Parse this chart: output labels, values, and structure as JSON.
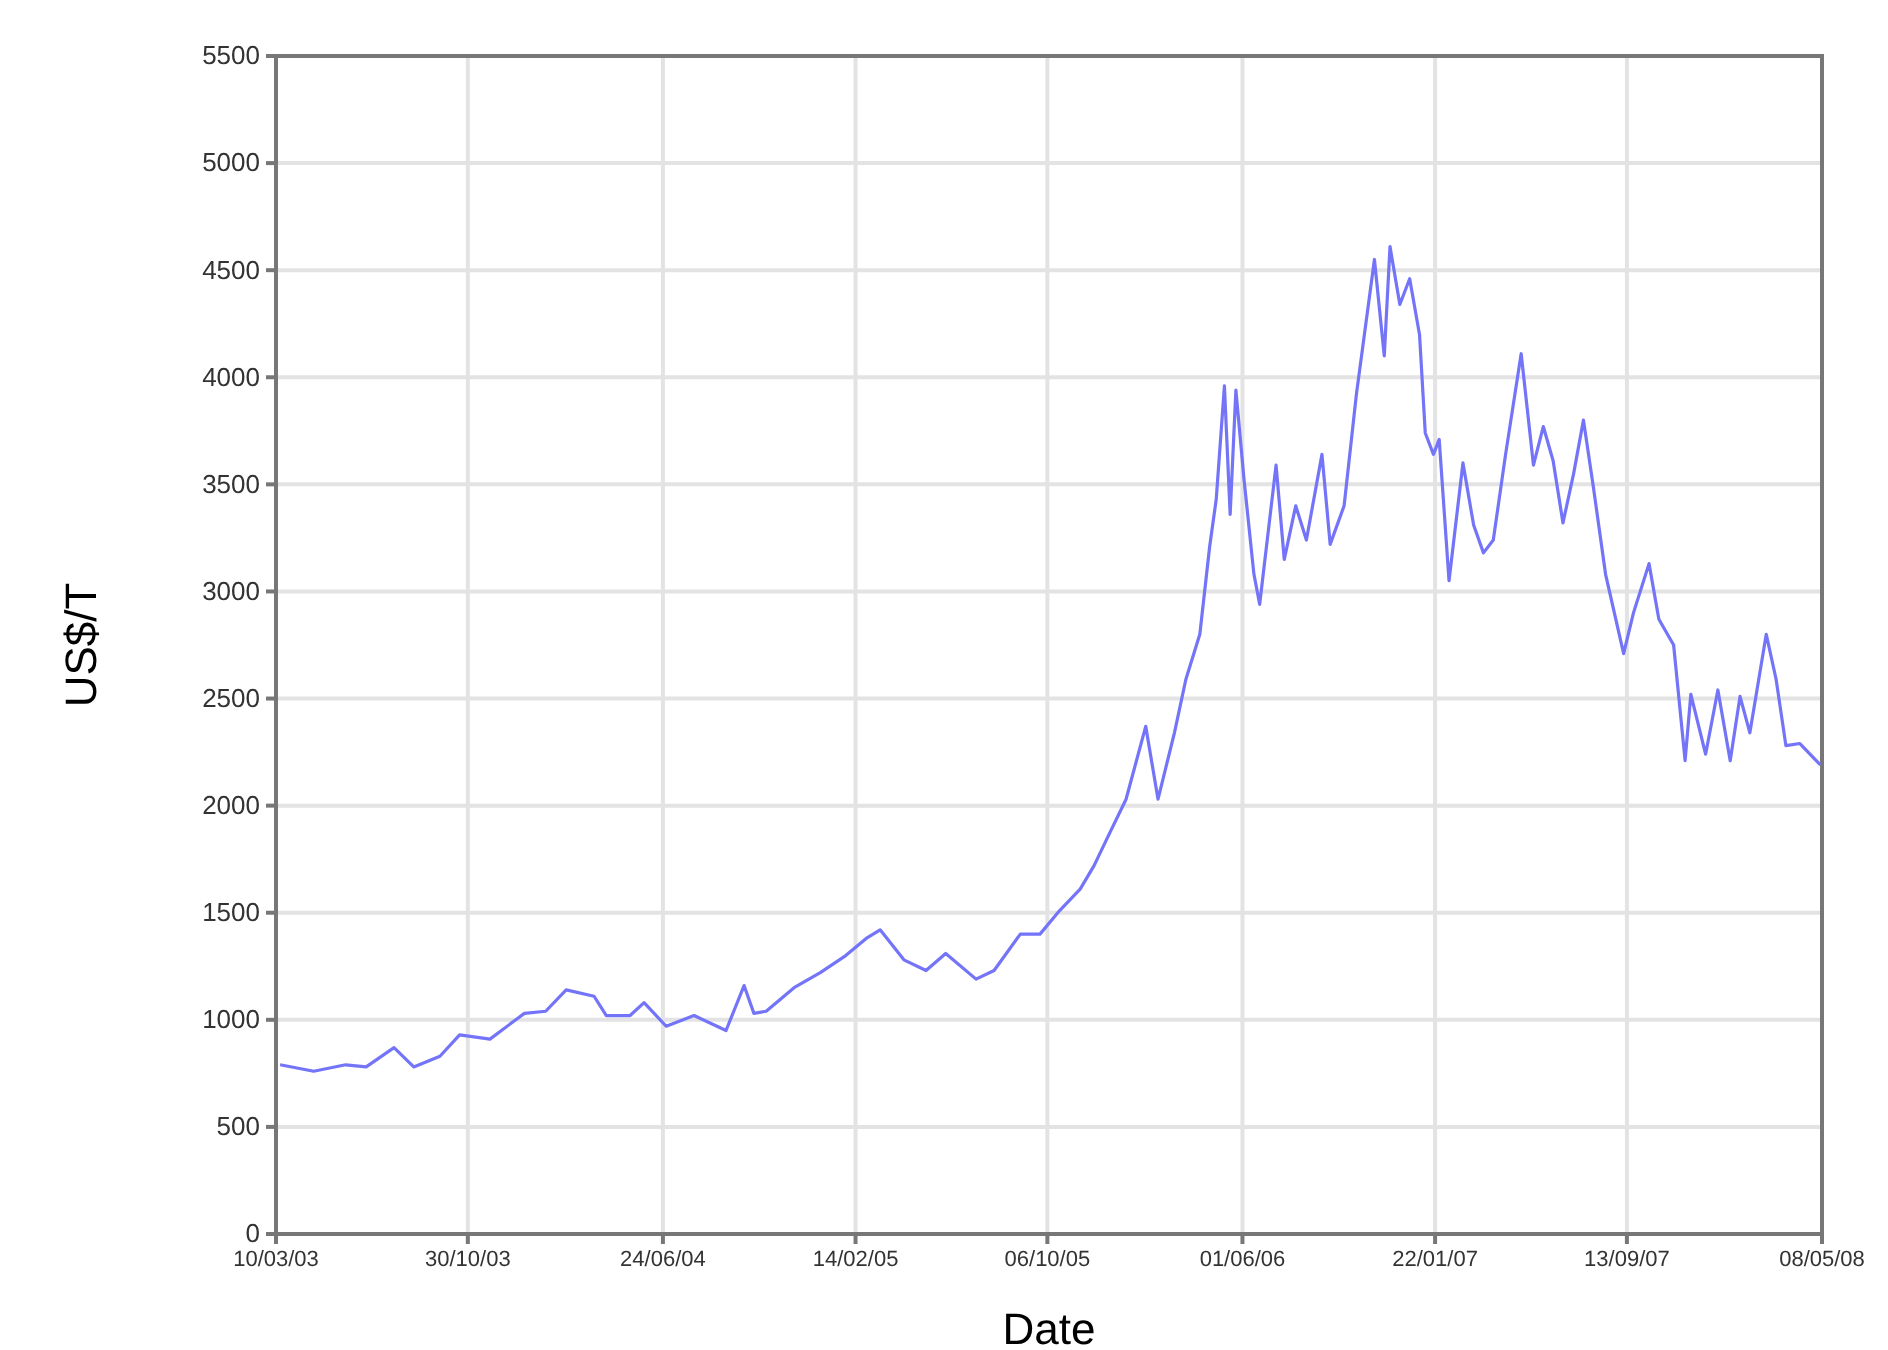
{
  "chart_data": {
    "type": "line",
    "xlabel": "Date",
    "ylabel": "US$/T",
    "x": [
      "2003-03-15",
      "2003-04-25",
      "2003-06-03",
      "2003-06-28",
      "2003-08-01",
      "2003-08-25",
      "2003-09-26",
      "2003-10-20",
      "2003-11-26",
      "2004-01-07",
      "2004-02-02",
      "2004-02-27",
      "2004-04-01",
      "2004-04-16",
      "2004-05-15",
      "2004-06-01",
      "2004-06-28",
      "2004-08-01",
      "2004-09-09",
      "2004-10-01",
      "2004-10-13",
      "2004-10-28",
      "2004-12-01",
      "2005-01-02",
      "2005-02-02",
      "2005-02-27",
      "2005-03-16",
      "2005-04-14",
      "2005-05-11",
      "2005-06-04",
      "2005-07-11",
      "2005-08-02",
      "2005-09-03",
      "2005-09-27",
      "2005-10-21",
      "2005-11-15",
      "2005-12-02",
      "2005-12-17",
      "2006-01-10",
      "2006-02-03",
      "2006-02-18",
      "2006-03-10",
      "2006-03-24",
      "2006-04-10",
      "2006-04-22",
      "2006-04-30",
      "2006-05-10",
      "2006-05-17",
      "2006-05-24",
      "2006-06-03",
      "2006-06-15",
      "2006-06-22",
      "2006-07-12",
      "2006-07-22",
      "2006-08-05",
      "2006-08-18",
      "2006-09-06",
      "2006-09-16",
      "2006-10-03",
      "2006-10-18",
      "2006-11-09",
      "2006-11-21",
      "2006-11-28",
      "2006-12-10",
      "2006-12-22",
      "2007-01-03",
      "2007-01-10",
      "2007-01-20",
      "2007-01-27",
      "2007-02-08",
      "2007-02-25",
      "2007-03-10",
      "2007-03-22",
      "2007-04-03",
      "2007-04-18",
      "2007-05-07",
      "2007-05-22",
      "2007-06-03",
      "2007-06-15",
      "2007-06-27",
      "2007-07-10",
      "2007-07-22",
      "2007-08-03",
      "2007-08-18",
      "2007-09-09",
      "2007-09-21",
      "2007-10-10",
      "2007-10-22",
      "2007-11-09",
      "2007-11-23",
      "2007-11-30",
      "2007-12-18",
      "2008-01-02",
      "2008-01-17",
      "2008-01-29",
      "2008-02-10",
      "2008-03-01",
      "2008-03-13",
      "2008-03-25",
      "2008-04-11",
      "2008-05-06"
    ],
    "series": [
      {
        "color": "#7474f8",
        "values": [
          790,
          760,
          790,
          780,
          870,
          780,
          830,
          930,
          910,
          1030,
          1040,
          1140,
          1110,
          1020,
          1020,
          1080,
          970,
          1020,
          950,
          1160,
          1030,
          1040,
          1150,
          1220,
          1300,
          1380,
          1420,
          1280,
          1230,
          1310,
          1190,
          1230,
          1400,
          1400,
          1510,
          1610,
          1720,
          1840,
          2030,
          2370,
          2030,
          2340,
          2590,
          2800,
          3210,
          3430,
          3960,
          3360,
          3940,
          3520,
          3080,
          2940,
          3590,
          3150,
          3400,
          3240,
          3640,
          3220,
          3400,
          3920,
          4550,
          4100,
          4610,
          4340,
          4460,
          4200,
          3740,
          3640,
          3710,
          3050,
          3600,
          3310,
          3180,
          3240,
          3640,
          4110,
          3590,
          3770,
          3610,
          3320,
          3550,
          3800,
          3490,
          3080,
          2710,
          2900,
          3130,
          2870,
          2750,
          2210,
          2520,
          2240,
          2540,
          2210,
          2510,
          2340,
          2800,
          2590,
          2280,
          2290,
          2190
        ]
      }
    ],
    "xlim": [
      "2003-03-10",
      "2008-05-08"
    ],
    "xticks": [
      {
        "value": "2003-03-10",
        "label": "10/03/03"
      },
      {
        "value": "2003-10-30",
        "label": "30/10/03"
      },
      {
        "value": "2004-06-24",
        "label": "24/06/04"
      },
      {
        "value": "2005-02-14",
        "label": "14/02/05"
      },
      {
        "value": "2005-10-06",
        "label": "06/10/05"
      },
      {
        "value": "2006-06-01",
        "label": "01/06/06"
      },
      {
        "value": "2007-01-22",
        "label": "22/01/07"
      },
      {
        "value": "2007-09-13",
        "label": "13/09/07"
      },
      {
        "value": "2008-05-08",
        "label": "08/05/08"
      }
    ],
    "ylim": [
      0,
      5500
    ],
    "yticks": [
      0,
      500,
      1000,
      1500,
      2000,
      2500,
      3000,
      3500,
      4000,
      4500,
      5000,
      5500
    ],
    "grid": true,
    "marker": "none",
    "line_style": "solid"
  }
}
